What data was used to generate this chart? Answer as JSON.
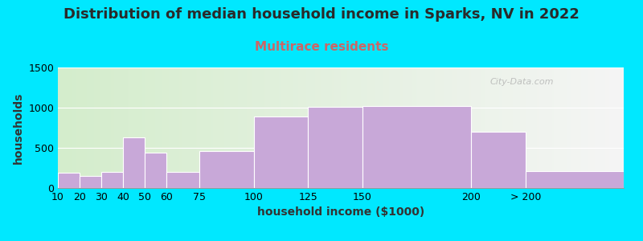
{
  "title": "Distribution of median household income in Sparks, NV in 2022",
  "subtitle": "Multirace residents",
  "xlabel": "household income ($1000)",
  "ylabel": "households",
  "bar_color": "#c8a8d8",
  "bar_edgecolor": "#ffffff",
  "background_outer": "#00e8ff",
  "background_inner_left": "#d4edcc",
  "background_inner_right": "#f5f5f5",
  "watermark": "City-Data.com",
  "title_color": "#2a2a2a",
  "subtitle_color": "#cc6666",
  "label_color": "#333333",
  "bin_edges": [
    10,
    20,
    30,
    40,
    50,
    60,
    75,
    100,
    125,
    150,
    200,
    225,
    270
  ],
  "values": [
    190,
    150,
    200,
    635,
    445,
    200,
    465,
    890,
    1010,
    1020,
    700,
    210
  ],
  "tick_labels": [
    "10",
    "20",
    "30",
    "40",
    "50",
    "60",
    "75",
    "100",
    "125",
    "150",
    "200",
    "> 200"
  ],
  "ylim": [
    0,
    1500
  ],
  "yticks": [
    0,
    500,
    1000,
    1500
  ],
  "title_fontsize": 13,
  "subtitle_fontsize": 11,
  "axis_label_fontsize": 10,
  "tick_fontsize": 9
}
